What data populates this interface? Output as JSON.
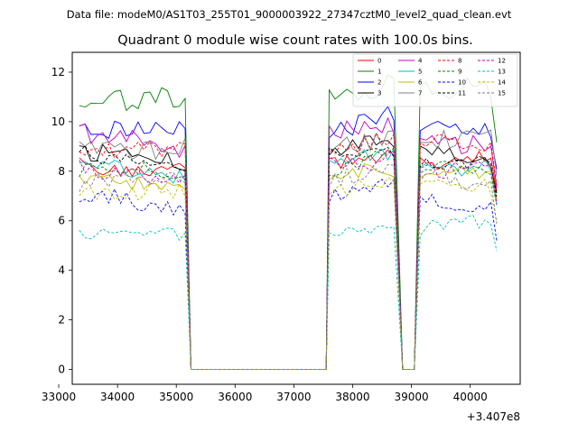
{
  "header": {
    "data_file": "Data file: modeM0/AS1T03_255T01_9000003922_27347cztM0_level2_quad_clean.evt"
  },
  "chart_data": {
    "type": "line",
    "title": "Quadrant 0 module wise count rates with 100.0s bins.",
    "xlabel": "",
    "ylabel": "",
    "offset_label": "+3.407e8",
    "xlim": [
      33230,
      40850
    ],
    "ylim": [
      -0.6,
      12.8
    ],
    "xticks": [
      33000,
      34000,
      35000,
      36000,
      37000,
      38000,
      39000,
      40000
    ],
    "xtick_labels": [
      "33000",
      "34000",
      "35000",
      "36000",
      "37000",
      "38000",
      "39000",
      "40000"
    ],
    "yticks": [
      0,
      2,
      4,
      6,
      8,
      10,
      12
    ],
    "ytick_labels": [
      "0",
      "2",
      "4",
      "6",
      "8",
      "10",
      "12"
    ],
    "grid": false,
    "legend_position": "top-right",
    "segments": [
      {
        "start": 33350,
        "end": 35150
      },
      {
        "start": 37600,
        "end": 38750
      },
      {
        "start": 39150,
        "end": 40450
      }
    ],
    "gap_points": [
      35250,
      35350,
      37450,
      37550,
      38850,
      38950,
      39050
    ],
    "series": [
      {
        "name": "0",
        "color": "#ff0000",
        "dash": false,
        "base": 8.4,
        "amp": 0.3,
        "seed": 0
      },
      {
        "name": "1",
        "color": "#008000",
        "dash": false,
        "base": 11.1,
        "amp": 0.45,
        "seed": 1
      },
      {
        "name": "2",
        "color": "#0000ff",
        "dash": false,
        "base": 9.7,
        "amp": 0.4,
        "seed": 2
      },
      {
        "name": "3",
        "color": "#000000",
        "dash": false,
        "base": 8.6,
        "amp": 0.35,
        "seed": 3
      },
      {
        "name": "4",
        "color": "#bf00bf",
        "dash": false,
        "base": 9.3,
        "amp": 0.4,
        "seed": 4
      },
      {
        "name": "5",
        "color": "#00bfbf",
        "dash": false,
        "base": 8.3,
        "amp": 0.3,
        "seed": 5
      },
      {
        "name": "6",
        "color": "#bfbf00",
        "dash": false,
        "base": 7.9,
        "amp": 0.35,
        "seed": 6
      },
      {
        "name": "7",
        "color": "#808080",
        "dash": false,
        "base": 9.1,
        "amp": 0.4,
        "seed": 7
      },
      {
        "name": "8",
        "color": "#ff0000",
        "dash": true,
        "base": 8.9,
        "amp": 0.35,
        "seed": 8
      },
      {
        "name": "9",
        "color": "#008000",
        "dash": true,
        "base": 8.0,
        "amp": 0.3,
        "seed": 9
      },
      {
        "name": "10",
        "color": "#0000ff",
        "dash": true,
        "base": 6.8,
        "amp": 0.35,
        "seed": 10
      },
      {
        "name": "11",
        "color": "#000000",
        "dash": true,
        "base": 8.5,
        "amp": 0.35,
        "seed": 11
      },
      {
        "name": "12",
        "color": "#bf00bf",
        "dash": true,
        "base": 8.2,
        "amp": 0.35,
        "seed": 12
      },
      {
        "name": "13",
        "color": "#00bfbf",
        "dash": true,
        "base": 5.7,
        "amp": 0.3,
        "seed": 13
      },
      {
        "name": "14",
        "color": "#bfbf00",
        "dash": true,
        "base": 7.3,
        "amp": 0.35,
        "seed": 14
      },
      {
        "name": "15",
        "color": "#808080",
        "dash": true,
        "base": 7.6,
        "amp": 0.4,
        "seed": 15
      }
    ]
  }
}
